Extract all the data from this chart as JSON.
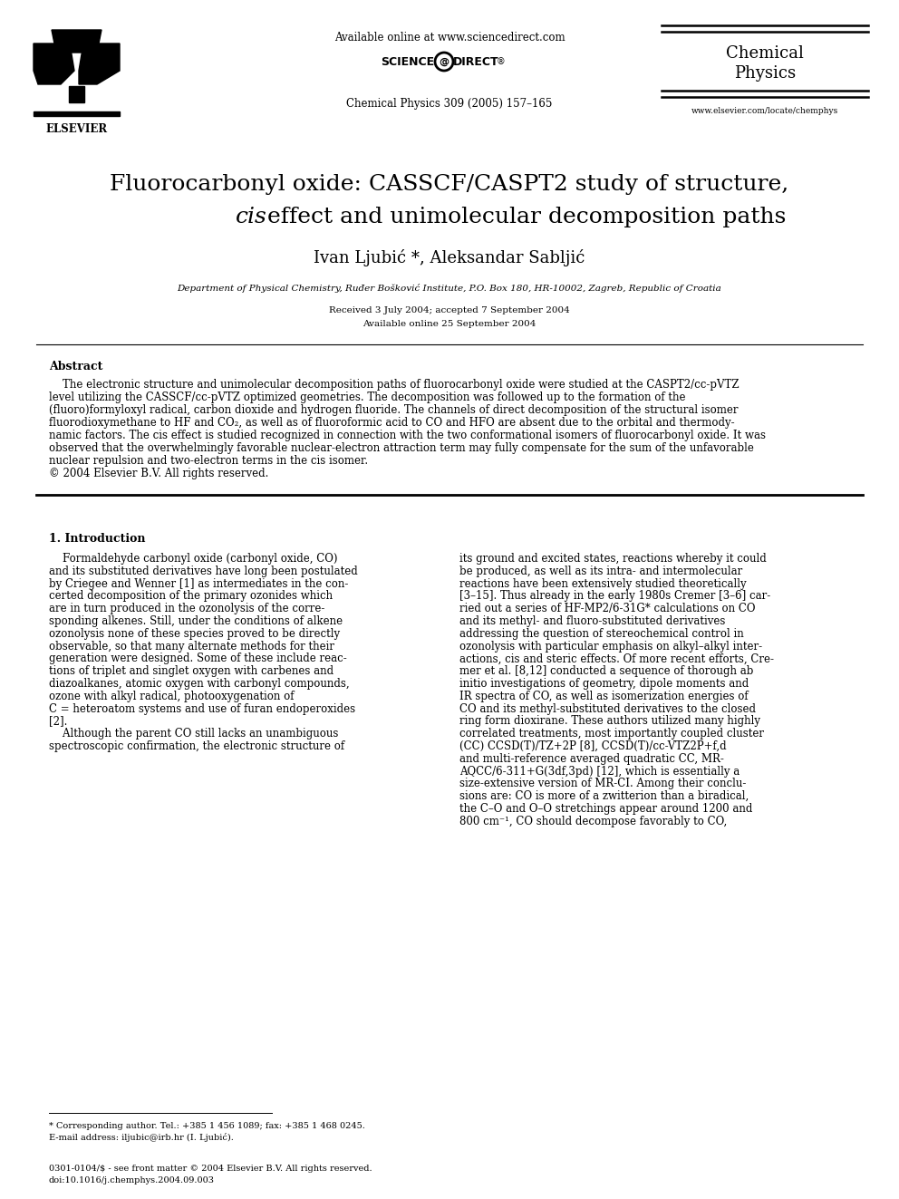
{
  "bg_color": "#ffffff",
  "header": {
    "available_online": "Available online at www.sciencedirect.com",
    "journal_ref": "Chemical Physics 309 (2005) 157–165",
    "journal_name_line1": "Chemical",
    "journal_name_line2": "Physics",
    "website": "www.elsevier.com/locate/chemphys"
  },
  "title_line1": "Fluorocarbonyl oxide: CASSCF/CASPT2 study of structure,",
  "title_line2_italic": "cis",
  "title_line2_rest": " effect and unimolecular decomposition paths",
  "authors": "Ivan Ljubić *, Aleksandar Sabljić",
  "affiliation": "Department of Physical Chemistry, Ruđer Bošković Institute, P.O. Box 180, HR-10002, Zagreb, Republic of Croatia",
  "received": "Received 3 July 2004; accepted 7 September 2004",
  "available_online_date": "Available online 25 September 2004",
  "abstract_title": "Abstract",
  "section1_title": "1. Introduction",
  "footnote1": "* Corresponding author. Tel.: +385 1 456 1089; fax: +385 1 468 0245.",
  "footnote2": "E-mail address: iljubic@irb.hr (I. Ljubić).",
  "bottom_line1": "0301-0104/$ - see front matter © 2004 Elsevier B.V. All rights reserved.",
  "bottom_line2": "doi:10.1016/j.chemphys.2004.09.003",
  "abstract_lines": [
    "    The electronic structure and unimolecular decomposition paths of fluorocarbonyl oxide were studied at the CASPT2/cc-pVTZ",
    "level utilizing the CASSCF/cc-pVTZ optimized geometries. The decomposition was followed up to the formation of the",
    "(fluoro)formyloxyl radical, carbon dioxide and hydrogen fluoride. The channels of direct decomposition of the structural isomer",
    "fluorodioxymethane to HF and CO₂, as well as of fluoroformic acid to CO and HFO are absent due to the orbital and thermody-",
    "namic factors. The cis effect is studied recognized in connection with the two conformational isomers of fluorocarbonyl oxide. It was",
    "observed that the overwhelmingly favorable nuclear-electron attraction term may fully compensate for the sum of the unfavorable",
    "nuclear repulsion and two-electron terms in the cis isomer.",
    "© 2004 Elsevier B.V. All rights reserved."
  ],
  "col1_lines": [
    "    Formaldehyde carbonyl oxide (carbonyl oxide, CO)",
    "and its substituted derivatives have long been postulated",
    "by Criegee and Wenner [1] as intermediates in the con-",
    "certed decomposition of the primary ozonides which",
    "are in turn produced in the ozonolysis of the corre-",
    "sponding alkenes. Still, under the conditions of alkene",
    "ozonolysis none of these species proved to be directly",
    "observable, so that many alternate methods for their",
    "generation were designed. Some of these include reac-",
    "tions of triplet and singlet oxygen with carbenes and",
    "diazoalkanes, atomic oxygen with carbonyl compounds,",
    "ozone with alkyl radical, photooxygenation of",
    "C = heteroatom systems and use of furan endoperoxides",
    "[2].",
    "    Although the parent CO still lacks an unambiguous",
    "spectroscopic confirmation, the electronic structure of"
  ],
  "col2_lines": [
    "its ground and excited states, reactions whereby it could",
    "be produced, as well as its intra- and intermolecular",
    "reactions have been extensively studied theoretically",
    "[3–15]. Thus already in the early 1980s Cremer [3–6] car-",
    "ried out a series of HF-MP2/6-31G* calculations on CO",
    "and its methyl- and fluoro-substituted derivatives",
    "addressing the question of stereochemical control in",
    "ozonolysis with particular emphasis on alkyl–alkyl inter-",
    "actions, cis and steric effects. Of more recent efforts, Cre-",
    "mer et al. [8,12] conducted a sequence of thorough ab",
    "initio investigations of geometry, dipole moments and",
    "IR spectra of CO, as well as isomerization energies of",
    "CO and its methyl-substituted derivatives to the closed",
    "ring form dioxirane. These authors utilized many highly",
    "correlated treatments, most importantly coupled cluster",
    "(CC) CCSD(T)/TZ+2P [8], CCSD(T)/cc-VTZ2P+f,d",
    "and multi-reference averaged quadratic CC, MR-",
    "AQCC/6-311+G(3df,3pd) [12], which is essentially a",
    "size-extensive version of MR-CI. Among their conclu-",
    "sions are: CO is more of a zwitterion than a biradical,",
    "the C–O and O–O stretchings appear around 1200 and",
    "800 cm⁻¹, CO should decompose favorably to CO,"
  ]
}
